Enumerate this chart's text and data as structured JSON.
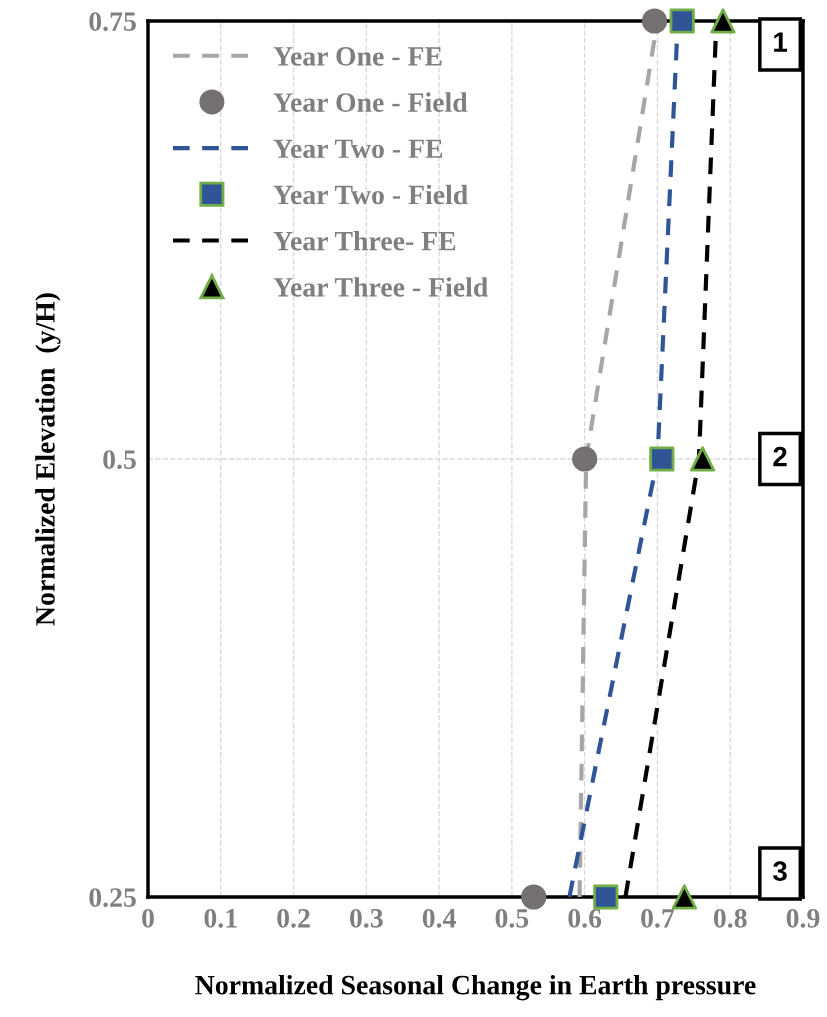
{
  "chart_data": {
    "type": "scatter",
    "xlabel": "Normalized Seasonal Change in Earth pressure",
    "ylabel": "Normalized Elevation  (y/H)",
    "xlim": [
      0,
      0.9
    ],
    "xticks": [
      0,
      0.1,
      0.2,
      0.3,
      0.4,
      0.5,
      0.6,
      0.7,
      0.8,
      0.9
    ],
    "ylim": [
      0.25,
      0.75
    ],
    "yticks": [
      0.25,
      0.5,
      0.75
    ],
    "grid": true,
    "legend": "top left",
    "series": [
      {
        "name": "Year One - FE",
        "type": "line",
        "line_style": "dashed",
        "marker": "none",
        "color": "#a6a6a6",
        "x": [
          0.593,
          0.602,
          0.7
        ],
        "values": [
          0.25,
          0.5,
          0.75
        ]
      },
      {
        "name": "Year One - Field",
        "marker": "circle",
        "color": "#767171",
        "x": [
          0.53,
          0.6,
          0.696
        ],
        "values": [
          0.25,
          0.5,
          0.75
        ]
      },
      {
        "name": "Year Two - FE",
        "type": "line",
        "line_style": "dashed",
        "marker": "none",
        "color": "#2f5597",
        "x": [
          0.579,
          0.7,
          0.728
        ],
        "values": [
          0.25,
          0.5,
          0.75
        ]
      },
      {
        "name": "Year Two - Field",
        "marker": "square",
        "color": "#2f5597",
        "x": [
          0.629,
          0.706,
          0.734
        ],
        "values": [
          0.25,
          0.5,
          0.75
        ]
      },
      {
        "name": "Year Three- FE",
        "type": "line",
        "line_style": "dashed",
        "marker": "none",
        "color": "#000000",
        "x": [
          0.656,
          0.757,
          0.781
        ],
        "values": [
          0.25,
          0.5,
          0.75
        ]
      },
      {
        "name": "Year Three - Field",
        "marker": "triangle",
        "color": "#000000",
        "x": [
          0.737,
          0.762,
          0.79
        ],
        "values": [
          0.25,
          0.5,
          0.75
        ]
      }
    ],
    "annotations": [
      "1",
      "2",
      "3"
    ]
  }
}
